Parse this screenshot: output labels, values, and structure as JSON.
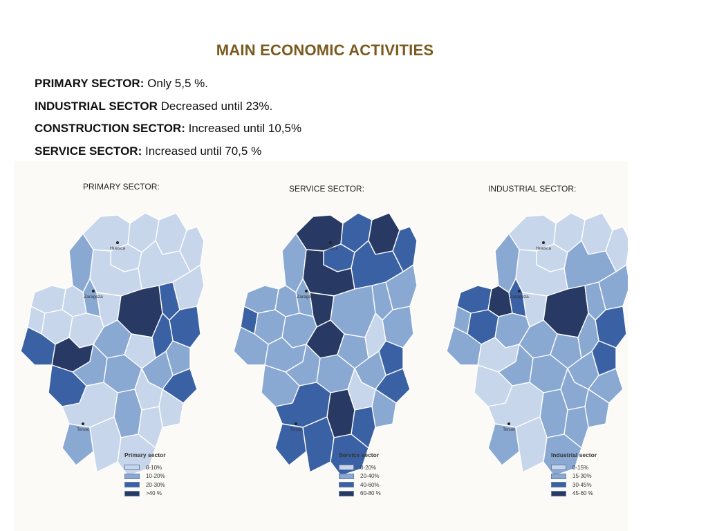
{
  "title": "MAIN ECONOMIC ACTIVITIES",
  "lines": [
    {
      "label": "PRIMARY SECTOR:",
      "text": " Only 5,5 %."
    },
    {
      "label": "INDUSTRIAL SECTOR",
      "text": "  Decreased until 23%."
    },
    {
      "label": "CONSTRUCTION SECTOR:",
      "text": " Increased until 10,5%"
    },
    {
      "label": "SERVICE SECTOR:",
      "text": " Increased until 70,5 %"
    }
  ],
  "maps": [
    {
      "heading": "PRIMARY SECTOR:",
      "legend_title": "Primary sector",
      "legend": [
        "0-10%",
        "10-20%",
        "20-30%",
        ">40 %"
      ],
      "cities": [
        "Huesca",
        "Zaragoza",
        "Teruel"
      ],
      "levels": [
        0,
        0,
        0,
        0,
        0,
        1,
        0,
        0,
        0,
        0,
        0,
        1,
        0,
        3,
        2,
        2,
        0,
        0,
        0,
        1,
        0,
        2,
        1,
        1,
        2,
        3,
        1,
        1,
        0,
        2,
        0,
        2,
        0,
        1,
        0,
        1,
        0,
        0,
        0
      ]
    },
    {
      "heading": "SERVICE SECTOR:",
      "legend_title": "Service sector",
      "legend": [
        "0-20%",
        "20-40%",
        "40-60%",
        "60-80 %"
      ],
      "cities": [
        "Huesca",
        "Zaragoza",
        "Teruel"
      ],
      "levels": [
        3,
        2,
        3,
        2,
        2,
        1,
        3,
        2,
        1,
        1,
        1,
        1,
        3,
        1,
        1,
        1,
        2,
        1,
        1,
        3,
        1,
        0,
        2,
        1,
        1,
        1,
        1,
        1,
        0,
        2,
        1,
        1,
        2,
        3,
        2,
        2,
        2,
        2,
        1
      ]
    },
    {
      "heading": "INDUSTRIAL SECTOR:",
      "legend_title": "Industrial sector",
      "legend": [
        "0-15%",
        "15-30%",
        "30-45%",
        "45-60 %"
      ],
      "cities": [
        "Huesca",
        "Zaragoza",
        "Teruel"
      ],
      "levels": [
        0,
        0,
        0,
        0,
        0,
        1,
        0,
        1,
        1,
        2,
        3,
        2,
        0,
        3,
        1,
        2,
        1,
        2,
        1,
        1,
        1,
        1,
        2,
        1,
        1,
        0,
        1,
        1,
        1,
        1,
        1,
        0,
        0,
        1,
        1,
        1,
        0,
        1,
        1
      ]
    }
  ],
  "colors": {
    "level_0": "#c7d6ea",
    "level_1": "#89a8d2",
    "level_2": "#3b61a5",
    "level_3": "#283a63",
    "border": "#ffffff",
    "title": "#7a5a1e"
  }
}
